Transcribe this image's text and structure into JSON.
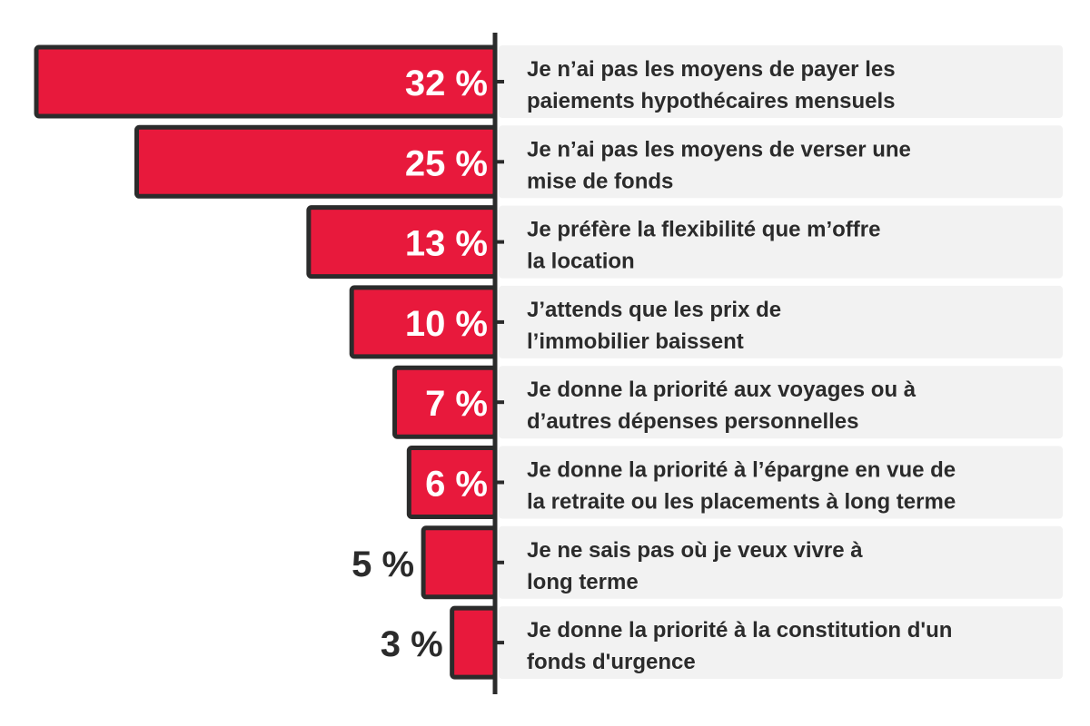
{
  "chart_data": {
    "type": "bar",
    "orientation": "horizontal",
    "categories": [
      [
        "Je n’ai pas les moyens de payer les",
        "paiements hypothécaires mensuels"
      ],
      [
        "Je n’ai pas les moyens de verser une",
        "mise de fonds"
      ],
      [
        "Je préfère la flexibilité que m’offre",
        "la location"
      ],
      [
        "J’attends que les prix de",
        "l’immobilier baissent"
      ],
      [
        "Je donne la priorité aux voyages ou à",
        "d’autres dépenses personnelles"
      ],
      [
        "Je donne la priorité à l’épargne en vue de",
        "la retraite ou les placements à long terme"
      ],
      [
        "Je ne sais pas où je veux vivre à",
        "long terme"
      ],
      [
        "Je donne la priorité à la constitution d'un",
        "fonds d'urgence"
      ]
    ],
    "values": [
      32,
      25,
      13,
      10,
      7,
      6,
      5,
      3
    ],
    "value_labels": [
      "32 %",
      "25 %",
      "13 %",
      "10 %",
      "7 %",
      "6 %",
      "5 %",
      "3 %"
    ],
    "xlim": [
      0,
      32
    ],
    "colors": {
      "bar_fill": "#e8193c",
      "bar_stroke": "#2b2b2b",
      "label_background": "#f2f2f2",
      "text": "#2b2b2b",
      "value_inside": "#ffffff"
    }
  }
}
